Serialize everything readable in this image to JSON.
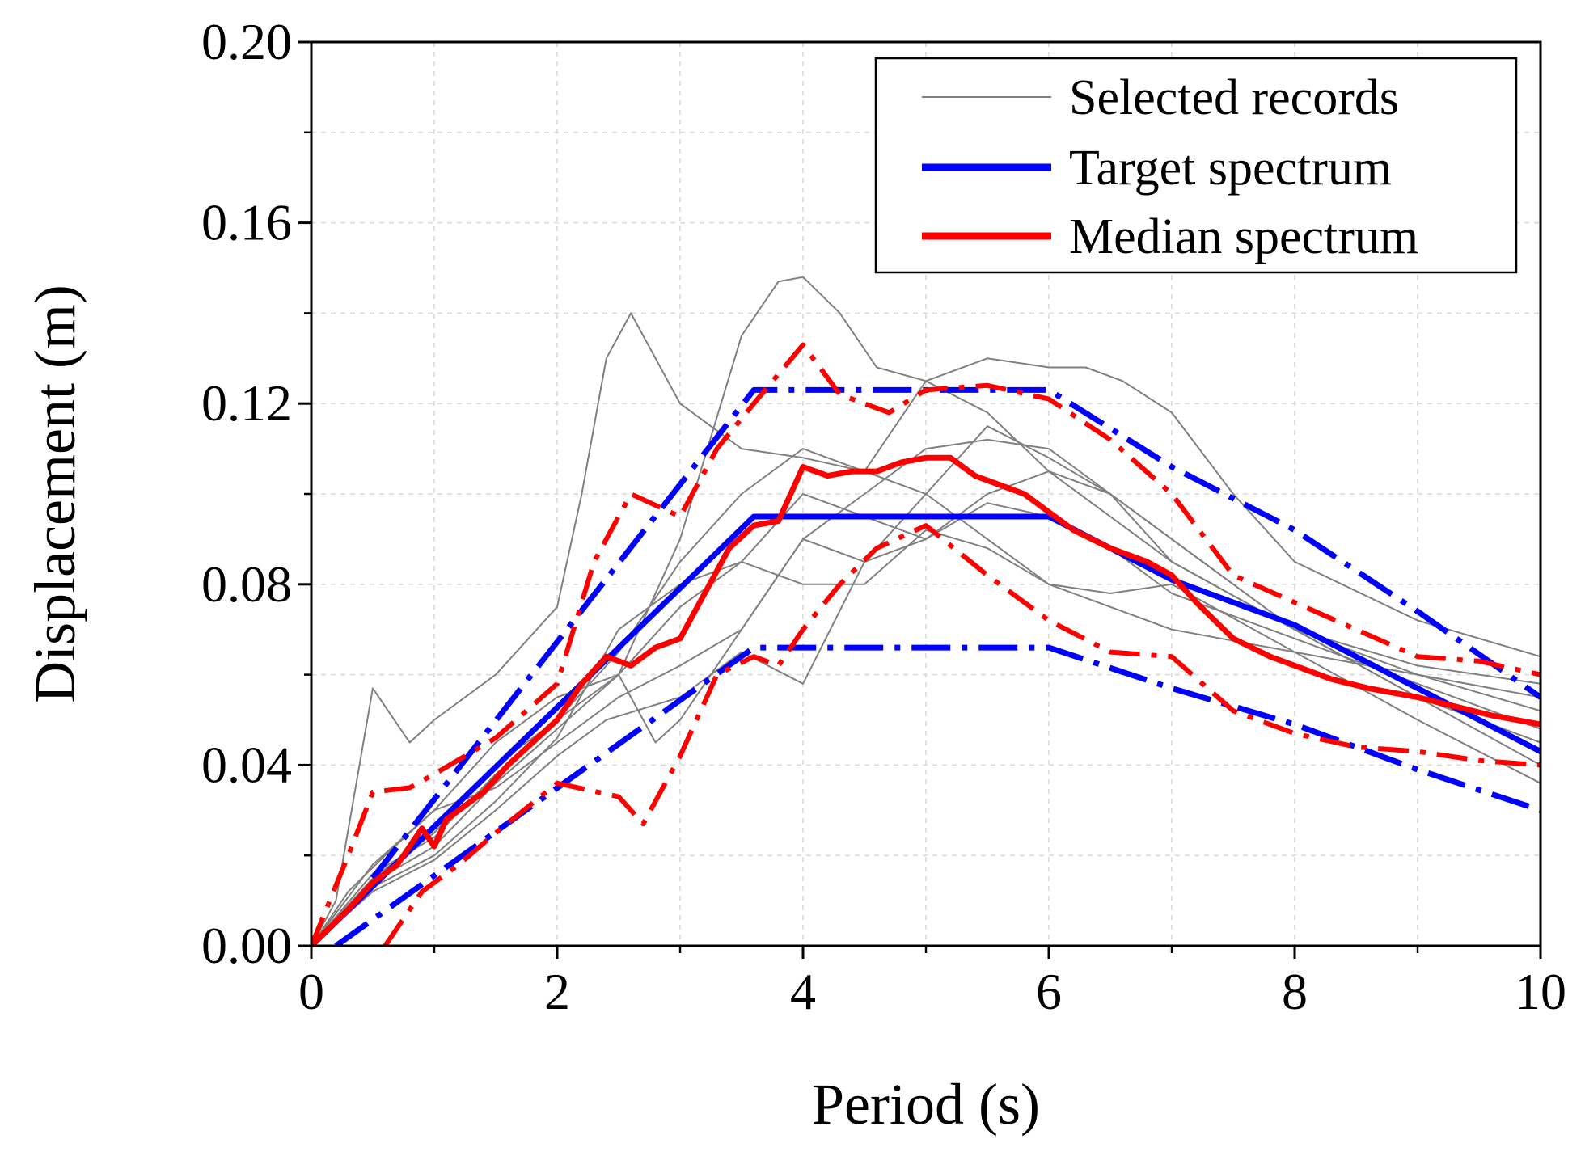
{
  "chart_data": {
    "type": "line",
    "xlabel": "Period (s)",
    "ylabel": "Displacement (m)",
    "xlim": [
      0,
      10
    ],
    "ylim": [
      0,
      0.2
    ],
    "xticks": [
      "0",
      "2",
      "4",
      "6",
      "8",
      "10"
    ],
    "yticks": [
      "0.00",
      "0.04",
      "0.08",
      "0.12",
      "0.16",
      "0.20"
    ],
    "grid": true,
    "legend_position": "top-right",
    "legend": [
      "Selected records",
      "Target spectrum",
      "Median spectrum"
    ],
    "colors": {
      "records": "#808080",
      "target": "#0000ff",
      "median": "#ff0000"
    },
    "series": [
      {
        "name": "Selected records",
        "role": "record",
        "x": [
          0,
          0.2,
          0.5,
          0.8,
          1.0,
          1.5,
          2.0,
          2.2,
          2.4,
          2.6,
          3.0,
          3.5,
          4.0,
          4.5,
          5.0,
          5.5,
          6.0,
          6.5,
          7.0,
          8.0,
          9.0,
          10.0
        ],
        "y": [
          0,
          0.01,
          0.057,
          0.045,
          0.05,
          0.06,
          0.075,
          0.1,
          0.13,
          0.14,
          0.12,
          0.11,
          0.108,
          0.105,
          0.1,
          0.09,
          0.08,
          0.075,
          0.07,
          0.065,
          0.06,
          0.055
        ]
      },
      {
        "name": "Selected records",
        "role": "record",
        "x": [
          0,
          0.3,
          0.6,
          1.0,
          1.5,
          2.0,
          2.5,
          3.0,
          3.5,
          3.8,
          4.0,
          4.3,
          4.6,
          5.0,
          5.5,
          6.0,
          6.5,
          7.0,
          8.0,
          9.0,
          10.0
        ],
        "y": [
          0,
          0.012,
          0.02,
          0.03,
          0.045,
          0.055,
          0.06,
          0.09,
          0.135,
          0.147,
          0.148,
          0.14,
          0.128,
          0.125,
          0.118,
          0.105,
          0.095,
          0.085,
          0.07,
          0.062,
          0.058
        ]
      },
      {
        "name": "Selected records",
        "role": "record",
        "x": [
          0,
          0.5,
          1.0,
          1.5,
          2.0,
          2.5,
          3.0,
          3.5,
          4.0,
          4.5,
          5.0,
          5.5,
          6.0,
          6.3,
          6.6,
          7.0,
          7.5,
          8.0,
          9.0,
          10.0
        ],
        "y": [
          0,
          0.015,
          0.025,
          0.04,
          0.05,
          0.065,
          0.085,
          0.1,
          0.11,
          0.105,
          0.125,
          0.13,
          0.128,
          0.128,
          0.125,
          0.118,
          0.1,
          0.085,
          0.072,
          0.064
        ]
      },
      {
        "name": "Selected records",
        "role": "record",
        "x": [
          0,
          0.5,
          1.0,
          1.5,
          2.0,
          2.5,
          3.0,
          3.5,
          4.0,
          4.5,
          5.0,
          5.5,
          6.0,
          6.5,
          7.0,
          8.0,
          9.0,
          10.0
        ],
        "y": [
          0,
          0.018,
          0.03,
          0.035,
          0.045,
          0.055,
          0.062,
          0.07,
          0.09,
          0.1,
          0.11,
          0.112,
          0.11,
          0.1,
          0.085,
          0.07,
          0.06,
          0.052
        ]
      },
      {
        "name": "Selected records",
        "role": "record",
        "x": [
          0,
          0.5,
          1.0,
          1.5,
          2.0,
          2.5,
          3.0,
          3.5,
          4.0,
          4.5,
          5.0,
          5.5,
          6.0,
          6.5,
          7.0,
          8.0,
          9.0,
          10.0
        ],
        "y": [
          0,
          0.016,
          0.024,
          0.038,
          0.05,
          0.06,
          0.075,
          0.085,
          0.1,
          0.095,
          0.09,
          0.098,
          0.095,
          0.088,
          0.078,
          0.068,
          0.058,
          0.048
        ]
      },
      {
        "name": "Selected records",
        "role": "record",
        "x": [
          0,
          0.5,
          1.0,
          1.5,
          2.0,
          2.5,
          2.8,
          3.0,
          3.5,
          4.0,
          4.5,
          5.0,
          5.5,
          6.0,
          6.5,
          7.0,
          8.0,
          9.0,
          10.0
        ],
        "y": [
          0,
          0.014,
          0.022,
          0.036,
          0.048,
          0.06,
          0.045,
          0.05,
          0.07,
          0.09,
          0.085,
          0.1,
          0.115,
          0.108,
          0.1,
          0.09,
          0.07,
          0.055,
          0.04
        ]
      },
      {
        "name": "Selected records",
        "role": "record",
        "x": [
          0,
          0.5,
          1.0,
          1.5,
          2.0,
          2.5,
          3.0,
          3.5,
          4.0,
          4.5,
          5.0,
          5.5,
          6.0,
          6.5,
          7.0,
          8.0,
          9.0,
          10.0
        ],
        "y": [
          0,
          0.013,
          0.02,
          0.032,
          0.046,
          0.07,
          0.08,
          0.085,
          0.08,
          0.08,
          0.092,
          0.088,
          0.08,
          0.078,
          0.08,
          0.065,
          0.05,
          0.036
        ]
      },
      {
        "name": "Selected records",
        "role": "record",
        "x": [
          0,
          0.5,
          1.0,
          1.5,
          2.0,
          2.4,
          3.0,
          3.5,
          4.0,
          4.5,
          5.0,
          5.5,
          6.0,
          6.5,
          7.0,
          8.0,
          9.0,
          10.0
        ],
        "y": [
          0,
          0.012,
          0.019,
          0.03,
          0.042,
          0.05,
          0.055,
          0.065,
          0.058,
          0.085,
          0.09,
          0.1,
          0.105,
          0.1,
          0.09,
          0.07,
          0.055,
          0.045
        ]
      },
      {
        "name": "Target spectrum",
        "role": "target",
        "x": [
          0,
          3.6,
          6.0,
          7.0,
          8.0,
          9.0,
          10.0
        ],
        "y": [
          0,
          0.095,
          0.095,
          0.081,
          0.071,
          0.057,
          0.043
        ]
      },
      {
        "name": "",
        "role": "target-upper",
        "x": [
          0.5,
          3.6,
          6.0,
          7.0,
          8.0,
          9.0,
          10.0
        ],
        "y": [
          0.015,
          0.123,
          0.123,
          0.106,
          0.092,
          0.074,
          0.055
        ]
      },
      {
        "name": "",
        "role": "target-lower",
        "x": [
          0.2,
          3.6,
          6.0,
          7.0,
          8.0,
          9.0,
          10.0
        ],
        "y": [
          0,
          0.066,
          0.066,
          0.057,
          0.049,
          0.039,
          0.03
        ]
      },
      {
        "name": "Median spectrum",
        "role": "median",
        "x": [
          0,
          0.3,
          0.5,
          0.7,
          0.9,
          1.0,
          1.1,
          1.2,
          1.4,
          1.6,
          1.8,
          2.0,
          2.2,
          2.4,
          2.6,
          2.8,
          3.0,
          3.2,
          3.4,
          3.6,
          3.8,
          4.0,
          4.2,
          4.4,
          4.6,
          4.8,
          5.0,
          5.2,
          5.4,
          5.6,
          5.8,
          6.0,
          6.2,
          6.5,
          6.8,
          7.0,
          7.2,
          7.5,
          7.8,
          8.0,
          8.3,
          8.6,
          9.0,
          9.3,
          9.6,
          10.0
        ],
        "y": [
          0,
          0.008,
          0.014,
          0.018,
          0.026,
          0.022,
          0.028,
          0.03,
          0.034,
          0.04,
          0.045,
          0.05,
          0.058,
          0.064,
          0.062,
          0.066,
          0.068,
          0.078,
          0.088,
          0.093,
          0.094,
          0.106,
          0.104,
          0.105,
          0.105,
          0.107,
          0.108,
          0.108,
          0.104,
          0.102,
          0.1,
          0.096,
          0.092,
          0.088,
          0.085,
          0.082,
          0.076,
          0.068,
          0.064,
          0.062,
          0.059,
          0.057,
          0.055,
          0.053,
          0.051,
          0.049
        ]
      },
      {
        "name": "",
        "role": "median-upper",
        "x": [
          0,
          0.3,
          0.5,
          0.8,
          1.0,
          1.5,
          2.0,
          2.3,
          2.6,
          3.0,
          3.3,
          3.6,
          4.0,
          4.3,
          4.7,
          5.0,
          5.5,
          6.0,
          6.5,
          7.0,
          7.5,
          8.0,
          8.5,
          9.0,
          9.5,
          10.0
        ],
        "y": [
          0,
          0.02,
          0.034,
          0.035,
          0.038,
          0.046,
          0.058,
          0.085,
          0.1,
          0.095,
          0.11,
          0.12,
          0.133,
          0.122,
          0.118,
          0.123,
          0.124,
          0.121,
          0.112,
          0.1,
          0.082,
          0.076,
          0.07,
          0.064,
          0.063,
          0.06
        ]
      },
      {
        "name": "",
        "role": "median-lower",
        "x": [
          0.6,
          0.9,
          1.2,
          1.5,
          2.0,
          2.5,
          2.7,
          3.0,
          3.3,
          3.6,
          3.8,
          4.0,
          4.3,
          4.6,
          5.0,
          5.5,
          6.0,
          6.5,
          7.0,
          7.5,
          8.0,
          8.5,
          9.0,
          9.5,
          10.0
        ],
        "y": [
          0,
          0.012,
          0.018,
          0.025,
          0.036,
          0.033,
          0.027,
          0.042,
          0.06,
          0.064,
          0.062,
          0.07,
          0.08,
          0.088,
          0.093,
          0.082,
          0.072,
          0.065,
          0.064,
          0.052,
          0.047,
          0.044,
          0.043,
          0.041,
          0.04
        ]
      }
    ]
  }
}
